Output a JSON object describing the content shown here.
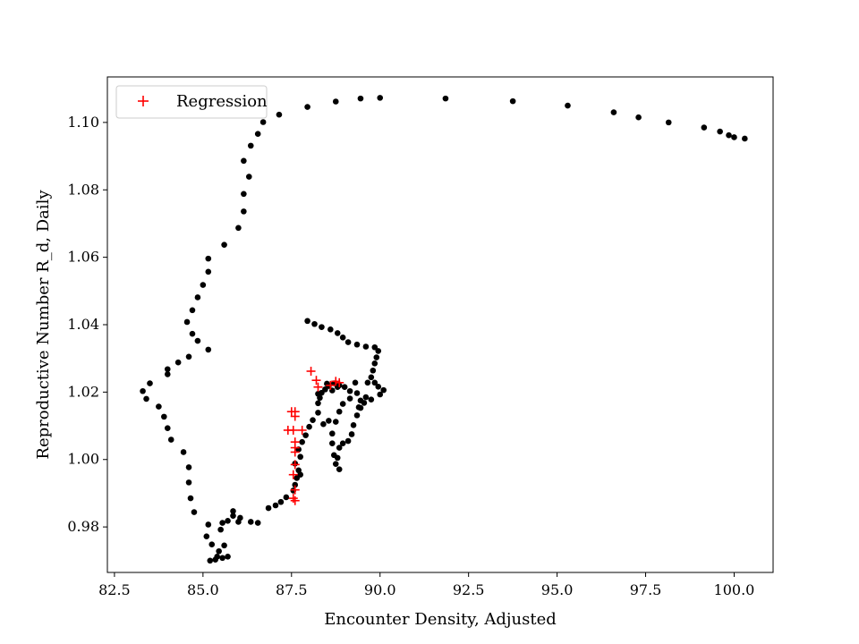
{
  "chart_data": {
    "type": "scatter",
    "title": "",
    "xlabel": "Encounter Density, Adjusted",
    "ylabel": "Reproductive Number R_d, Daily",
    "xlim": [
      82.3,
      101.1
    ],
    "ylim": [
      0.9665,
      1.1135
    ],
    "xticks": [
      "82.5",
      "85.0",
      "87.5",
      "90.0",
      "92.5",
      "95.0",
      "97.5",
      "100.0"
    ],
    "yticks": [
      "0.98",
      "1.00",
      "1.02",
      "1.04",
      "1.06",
      "1.08",
      "1.10"
    ],
    "legend": {
      "placement": "upper-left",
      "entries": [
        {
          "label": "Regression",
          "marker": "plus",
          "color": "#ff0000"
        }
      ]
    },
    "grid": false,
    "series": [
      {
        "marker": "dot",
        "color": "#000000",
        "points": [
          [
            100.3,
            1.0952
          ],
          [
            100.0,
            1.0956
          ],
          [
            99.85,
            1.0962
          ],
          [
            99.6,
            1.0973
          ],
          [
            99.15,
            1.0985
          ],
          [
            98.15,
            1.1
          ],
          [
            97.3,
            1.1015
          ],
          [
            96.6,
            1.103
          ],
          [
            95.3,
            1.105
          ],
          [
            93.75,
            1.1063
          ],
          [
            91.85,
            1.1071
          ],
          [
            90.0,
            1.1073
          ],
          [
            89.45,
            1.1071
          ],
          [
            88.75,
            1.1062
          ],
          [
            87.95,
            1.1046
          ],
          [
            87.15,
            1.1023
          ],
          [
            86.7,
            1.1001
          ],
          [
            86.55,
            1.0966
          ],
          [
            86.35,
            1.0931
          ],
          [
            86.15,
            1.0886
          ],
          [
            86.3,
            1.0839
          ],
          [
            86.15,
            1.0788
          ],
          [
            86.15,
            1.0736
          ],
          [
            86.0,
            1.0687
          ],
          [
            85.6,
            1.0637
          ],
          [
            85.15,
            1.0596
          ],
          [
            85.15,
            1.0557
          ],
          [
            85.0,
            1.0518
          ],
          [
            84.85,
            1.0481
          ],
          [
            84.7,
            1.0443
          ],
          [
            84.55,
            1.0408
          ],
          [
            84.7,
            1.0373
          ],
          [
            84.85,
            1.0352
          ],
          [
            85.15,
            1.0326
          ],
          [
            84.6,
            1.0305
          ],
          [
            84.3,
            1.0288
          ],
          [
            84.0,
            1.0268
          ],
          [
            84.0,
            1.0253
          ],
          [
            83.5,
            1.0226
          ],
          [
            83.3,
            1.0203
          ],
          [
            83.4,
            1.018
          ],
          [
            83.75,
            1.0157
          ],
          [
            83.9,
            1.0127
          ],
          [
            84.0,
            1.0093
          ],
          [
            84.1,
            1.0059
          ],
          [
            84.45,
            1.0022
          ],
          [
            84.6,
            0.9977
          ],
          [
            84.6,
            0.9932
          ],
          [
            84.65,
            0.9885
          ],
          [
            84.75,
            0.9844
          ],
          [
            85.15,
            0.9807
          ],
          [
            85.1,
            0.9772
          ],
          [
            85.25,
            0.9748
          ],
          [
            85.45,
            0.9728
          ],
          [
            85.4,
            0.9712
          ],
          [
            85.2,
            0.97
          ],
          [
            85.35,
            0.9703
          ],
          [
            85.55,
            0.9708
          ],
          [
            85.7,
            0.9712
          ],
          [
            85.6,
            0.9745
          ],
          [
            85.5,
            0.9792
          ],
          [
            85.55,
            0.9812
          ],
          [
            85.7,
            0.9818
          ],
          [
            85.85,
            0.9833
          ],
          [
            85.85,
            0.9847
          ],
          [
            86.05,
            0.9827
          ],
          [
            86.0,
            0.9815
          ],
          [
            86.35,
            0.9815
          ],
          [
            86.55,
            0.9812
          ],
          [
            86.85,
            0.9856
          ],
          [
            87.05,
            0.9864
          ],
          [
            87.2,
            0.9874
          ],
          [
            87.35,
            0.9888
          ],
          [
            87.55,
            0.9908
          ],
          [
            87.6,
            0.9925
          ],
          [
            87.65,
            0.9945
          ],
          [
            87.7,
            0.9968
          ],
          [
            87.6,
            0.9988
          ],
          [
            87.75,
            1.0008
          ],
          [
            87.7,
            1.003
          ],
          [
            87.8,
            1.0052
          ],
          [
            87.9,
            1.0072
          ],
          [
            88.0,
            1.0097
          ],
          [
            88.1,
            1.0117
          ],
          [
            88.25,
            1.0139
          ],
          [
            88.25,
            1.0167
          ],
          [
            88.3,
            1.0183
          ],
          [
            88.35,
            1.0198
          ],
          [
            88.45,
            1.0208
          ],
          [
            88.55,
            1.0218
          ],
          [
            88.7,
            1.0226
          ],
          [
            88.85,
            1.022
          ],
          [
            89.0,
            1.0215
          ],
          [
            89.15,
            1.0203
          ],
          [
            89.35,
            1.0197
          ],
          [
            89.15,
            1.0181
          ],
          [
            88.95,
            1.0165
          ],
          [
            88.85,
            1.0142
          ],
          [
            88.75,
            1.0112
          ],
          [
            88.65,
            1.0077
          ],
          [
            88.65,
            1.0048
          ],
          [
            88.7,
            1.0013
          ],
          [
            88.75,
            0.9987
          ],
          [
            88.85,
            0.9971
          ],
          [
            88.8,
            1.0005
          ],
          [
            88.85,
            1.0035
          ],
          [
            88.95,
            1.0048
          ],
          [
            89.1,
            1.0055
          ],
          [
            89.2,
            1.0075
          ],
          [
            89.25,
            1.0102
          ],
          [
            89.35,
            1.0131
          ],
          [
            89.45,
            1.0153
          ],
          [
            89.55,
            1.0168
          ],
          [
            89.75,
            1.0178
          ],
          [
            90.0,
            1.0193
          ],
          [
            90.1,
            1.0206
          ],
          [
            89.95,
            1.0216
          ],
          [
            89.85,
            1.0228
          ],
          [
            89.75,
            1.0244
          ],
          [
            89.8,
            1.0264
          ],
          [
            89.85,
            1.0285
          ],
          [
            89.9,
            1.0303
          ],
          [
            89.95,
            1.0322
          ],
          [
            89.85,
            1.0333
          ],
          [
            89.6,
            1.0335
          ],
          [
            89.35,
            1.0341
          ],
          [
            89.1,
            1.0348
          ],
          [
            88.95,
            1.0362
          ],
          [
            88.8,
            1.0375
          ],
          [
            88.6,
            1.0386
          ],
          [
            88.35,
            1.0393
          ],
          [
            88.15,
            1.0402
          ],
          [
            87.95,
            1.0411
          ],
          [
            88.5,
            1.0225
          ],
          [
            88.25,
            1.0195
          ],
          [
            88.4,
            1.0105
          ],
          [
            88.55,
            1.0115
          ],
          [
            88.65,
            1.0205
          ],
          [
            88.8,
            1.0215
          ],
          [
            89.45,
            1.0175
          ],
          [
            89.6,
            1.0185
          ],
          [
            89.3,
            1.0228
          ],
          [
            89.65,
            1.0228
          ],
          [
            87.75,
            0.9955
          ],
          [
            89.4,
            1.0155
          ]
        ]
      },
      {
        "name": "Regression",
        "marker": "plus",
        "color": "#ff0000",
        "points": [
          [
            88.05,
            1.0262
          ],
          [
            88.2,
            1.0235
          ],
          [
            88.25,
            1.0215
          ],
          [
            88.75,
            1.0232
          ],
          [
            88.85,
            1.0228
          ],
          [
            88.6,
            1.022
          ],
          [
            87.5,
            1.0142
          ],
          [
            87.6,
            1.0142
          ],
          [
            87.6,
            1.0128
          ],
          [
            87.4,
            1.0087
          ],
          [
            87.55,
            1.0087
          ],
          [
            87.8,
            1.0087
          ],
          [
            87.6,
            1.0052
          ],
          [
            87.6,
            1.0035
          ],
          [
            87.6,
            1.0022
          ],
          [
            87.6,
            0.9985
          ],
          [
            87.55,
            0.9955
          ],
          [
            87.6,
            0.991
          ],
          [
            87.55,
            0.9885
          ],
          [
            87.6,
            0.9878
          ]
        ]
      }
    ]
  }
}
